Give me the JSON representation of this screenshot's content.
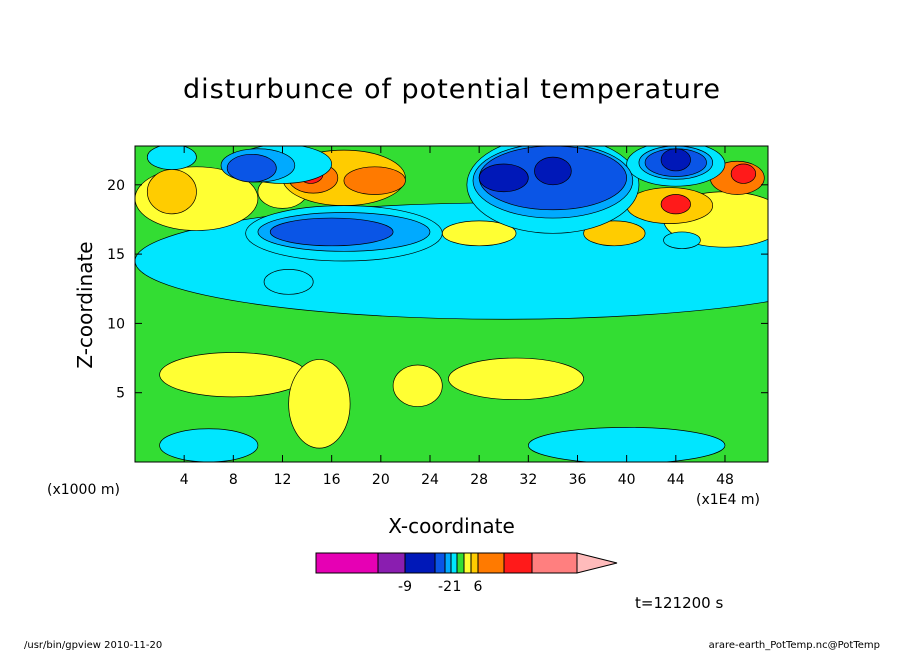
{
  "chart_data": {
    "type": "heatmap",
    "title": "disturbunce of potential temperature",
    "xlabel": "X-coordinate",
    "ylabel": "Z-coordinate",
    "x_unit_left": "(x1000 m)",
    "x_unit_right": "(x1E4 m)",
    "xlim": [
      0,
      51.5
    ],
    "ylim": [
      0,
      22.8
    ],
    "xticks": [
      "4",
      "8",
      "12",
      "16",
      "20",
      "24",
      "28",
      "32",
      "36",
      "40",
      "44",
      "48"
    ],
    "yticks": [
      "5",
      "10",
      "15",
      "20"
    ],
    "colorbar": {
      "levels": [
        -15,
        -9,
        -5,
        -2,
        -1,
        1,
        2,
        4,
        6,
        10,
        14,
        20
      ],
      "tick_labels": [
        "-9",
        "-2",
        "1",
        "6"
      ],
      "colors": [
        "#e600b4",
        "#8a1eb0",
        "#0018b8",
        "#0a55e6",
        "#00aaff",
        "#00e6ff",
        "#33dd33",
        "#ffff33",
        "#ffcc00",
        "#ff7a00",
        "#ff1a1a",
        "#ff7f7f",
        "#ffbbbb"
      ],
      "extend": "right"
    },
    "regions": [
      {
        "value": 0.5,
        "cx": 40,
        "cy": 1.2,
        "rx": 8,
        "ry": 1.3
      },
      {
        "value": 0.5,
        "cx": 6,
        "cy": 1.2,
        "rx": 4,
        "ry": 1.2
      },
      {
        "value": 0.5,
        "cx": 30,
        "cy": 14.5,
        "rx": 30,
        "ry": 4.2
      },
      {
        "value": 3,
        "cx": 8,
        "cy": 6.3,
        "rx": 6,
        "ry": 1.6
      },
      {
        "value": 3,
        "cx": 15,
        "cy": 4.2,
        "rx": 2.5,
        "ry": 3.2
      },
      {
        "value": 3,
        "cx": 31,
        "cy": 6,
        "rx": 5.5,
        "ry": 1.5
      },
      {
        "value": 3,
        "cx": 23,
        "cy": 5.5,
        "rx": 2,
        "ry": 1.5
      },
      {
        "value": 3,
        "cx": 5,
        "cy": 19,
        "rx": 5,
        "ry": 2.3
      },
      {
        "value": 3,
        "cx": 12,
        "cy": 19.5,
        "rx": 2,
        "ry": 1.2
      },
      {
        "value": 3,
        "cx": 48,
        "cy": 17.5,
        "rx": 5,
        "ry": 2
      },
      {
        "value": 3,
        "cx": 28,
        "cy": 16.5,
        "rx": 3,
        "ry": 0.9
      },
      {
        "value": 5,
        "cx": 3,
        "cy": 19.5,
        "rx": 2,
        "ry": 1.6
      },
      {
        "value": 5,
        "cx": 43.5,
        "cy": 18.5,
        "rx": 3.5,
        "ry": 1.3
      },
      {
        "value": 5,
        "cx": 39,
        "cy": 16.5,
        "rx": 2.5,
        "ry": 0.9
      },
      {
        "value": 5,
        "cx": 17,
        "cy": 20.5,
        "rx": 5,
        "ry": 2
      },
      {
        "value": 5,
        "cx": 37.5,
        "cy": 21.6,
        "rx": 1.2,
        "ry": 0.9
      },
      {
        "value": 9,
        "cx": 14.5,
        "cy": 20.5,
        "rx": 2,
        "ry": 1.1
      },
      {
        "value": 9,
        "cx": 19.5,
        "cy": 20.3,
        "rx": 2.5,
        "ry": 1
      },
      {
        "value": 9,
        "cx": 49,
        "cy": 20.5,
        "rx": 2.2,
        "ry": 1.2
      },
      {
        "value": 12,
        "cx": 14.3,
        "cy": 20.8,
        "rx": 1,
        "ry": 0.7
      },
      {
        "value": 12,
        "cx": 44,
        "cy": 18.6,
        "rx": 1.2,
        "ry": 0.7
      },
      {
        "value": 12,
        "cx": 49.5,
        "cy": 20.8,
        "rx": 1,
        "ry": 0.7
      },
      {
        "value": 0,
        "cx": 34,
        "cy": 20,
        "rx": 7,
        "ry": 3.5
      },
      {
        "value": 0,
        "cx": 44,
        "cy": 21.5,
        "rx": 4,
        "ry": 1.6
      },
      {
        "value": 0,
        "cx": 17,
        "cy": 16.5,
        "rx": 8,
        "ry": 2
      },
      {
        "value": 0,
        "cx": 12,
        "cy": 21.5,
        "rx": 4,
        "ry": 1.4
      },
      {
        "value": 0,
        "cx": 3,
        "cy": 22,
        "rx": 2,
        "ry": 0.9
      },
      {
        "value": 0,
        "cx": 12.5,
        "cy": 13,
        "rx": 2,
        "ry": 0.9
      },
      {
        "value": 0,
        "cx": 44.5,
        "cy": 16,
        "rx": 1.5,
        "ry": 0.6
      },
      {
        "value": -1.5,
        "cx": 34,
        "cy": 20.3,
        "rx": 6.5,
        "ry": 2.7
      },
      {
        "value": -1.5,
        "cx": 17,
        "cy": 16.6,
        "rx": 7,
        "ry": 1.4
      },
      {
        "value": -1.5,
        "cx": 44,
        "cy": 21.6,
        "rx": 3,
        "ry": 1.2
      },
      {
        "value": -1.5,
        "cx": 10,
        "cy": 21.4,
        "rx": 3,
        "ry": 1.2
      },
      {
        "value": -3.5,
        "cx": 34,
        "cy": 20.5,
        "rx": 6,
        "ry": 2.3
      },
      {
        "value": -3.5,
        "cx": 16,
        "cy": 16.6,
        "rx": 5,
        "ry": 1
      },
      {
        "value": -3.5,
        "cx": 44,
        "cy": 21.6,
        "rx": 2.5,
        "ry": 1
      },
      {
        "value": -3.5,
        "cx": 9.5,
        "cy": 21.2,
        "rx": 2,
        "ry": 1
      },
      {
        "value": -7,
        "cx": 30,
        "cy": 20.5,
        "rx": 2,
        "ry": 1
      },
      {
        "value": -7,
        "cx": 34,
        "cy": 21,
        "rx": 1.5,
        "ry": 1
      },
      {
        "value": -7,
        "cx": 44,
        "cy": 21.8,
        "rx": 1.2,
        "ry": 0.8
      }
    ]
  },
  "labels": {
    "time": "t=121200 s",
    "footer_left": "/usr/bin/gpview   2010-11-20",
    "footer_right": "arare-earth_PotTemp.nc@PotTemp"
  }
}
